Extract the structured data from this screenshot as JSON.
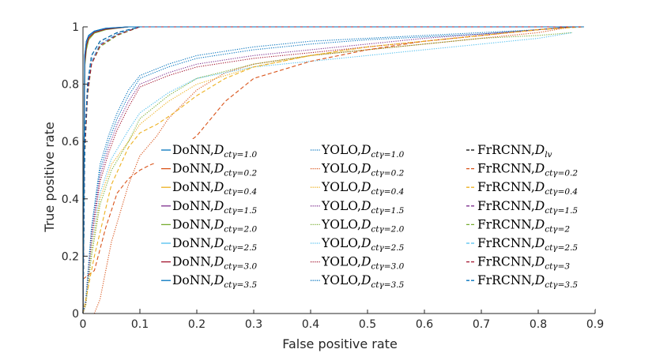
{
  "chart_data": {
    "type": "line",
    "title": "",
    "xlabel": "False positive rate",
    "ylabel": "True positive rate",
    "xlim": [
      0,
      0.9
    ],
    "ylim": [
      0,
      1
    ],
    "xticks": [
      0,
      0.1,
      0.2,
      0.3,
      0.4,
      0.5,
      0.6,
      0.7,
      0.8,
      0.9
    ],
    "xtick_labels": [
      "0",
      "0.1",
      "0.2",
      "0.3",
      "0.4",
      "0.5",
      "0.6",
      "0.7",
      "0.8",
      "0.9"
    ],
    "yticks": [
      0,
      0.2,
      0.4,
      0.6,
      0.8,
      1
    ],
    "ytick_labels": [
      "0",
      "0.2",
      "0.4",
      "0.6",
      "0.8",
      "1"
    ],
    "grid": false,
    "legend_position": "inside-center-bottom, 3 columns",
    "series": [
      {
        "name": "DoNN, D_ctγ=1.0",
        "model": "DoNN",
        "sub": "ctγ=1.0",
        "color": "#0072BD",
        "style": "solid",
        "x": [
          0,
          0.003,
          0.006,
          0.01,
          0.02,
          0.04,
          0.08,
          0.88
        ],
        "y": [
          0,
          0.9,
          0.95,
          0.97,
          0.985,
          0.995,
          1,
          1
        ]
      },
      {
        "name": "DoNN, D_ctγ=0.2",
        "model": "DoNN",
        "sub": "ctγ=0.2",
        "color": "#D95319",
        "style": "solid",
        "x": [
          0,
          0.003,
          0.006,
          0.01,
          0.02,
          0.04,
          0.08,
          0.88
        ],
        "y": [
          0,
          0.88,
          0.94,
          0.965,
          0.982,
          0.993,
          1,
          1
        ]
      },
      {
        "name": "DoNN, D_ctγ=0.4",
        "model": "DoNN",
        "sub": "ctγ=0.4",
        "color": "#EDB120",
        "style": "solid",
        "x": [
          0,
          0.003,
          0.006,
          0.01,
          0.02,
          0.04,
          0.08,
          0.88
        ],
        "y": [
          0,
          0.87,
          0.93,
          0.96,
          0.98,
          0.992,
          1,
          1
        ]
      },
      {
        "name": "DoNN, D_ctγ=1.5",
        "model": "DoNN",
        "sub": "ctγ=1.5",
        "color": "#7E2F8E",
        "style": "solid",
        "x": [
          0,
          0.003,
          0.006,
          0.01,
          0.02,
          0.04,
          0.08,
          0.88
        ],
        "y": [
          0,
          0.89,
          0.945,
          0.968,
          0.984,
          0.994,
          1,
          1
        ]
      },
      {
        "name": "DoNN, D_ctγ=2.0",
        "model": "DoNN",
        "sub": "ctγ=2.0",
        "color": "#77AC30",
        "style": "solid",
        "x": [
          0,
          0.003,
          0.006,
          0.01,
          0.02,
          0.04,
          0.08,
          0.88
        ],
        "y": [
          0,
          0.86,
          0.92,
          0.955,
          0.978,
          0.99,
          1,
          1
        ]
      },
      {
        "name": "DoNN, D_ctγ=2.5",
        "model": "DoNN",
        "sub": "ctγ=2.5",
        "color": "#4DBEEE",
        "style": "solid",
        "x": [
          0,
          0.003,
          0.006,
          0.01,
          0.02,
          0.04,
          0.08,
          0.88
        ],
        "y": [
          0,
          0.88,
          0.94,
          0.966,
          0.983,
          0.993,
          1,
          1
        ]
      },
      {
        "name": "DoNN, D_ctγ=3.0",
        "model": "DoNN",
        "sub": "ctγ=3.0",
        "color": "#A2142F",
        "style": "solid",
        "x": [
          0,
          0.003,
          0.006,
          0.01,
          0.02,
          0.04,
          0.08,
          0.88
        ],
        "y": [
          0,
          0.87,
          0.935,
          0.962,
          0.981,
          0.992,
          1,
          1
        ]
      },
      {
        "name": "DoNN, D_ctγ=3.5",
        "model": "DoNN",
        "sub": "ctγ=3.5",
        "color": "#0072BD",
        "style": "solid",
        "x": [
          0,
          0.003,
          0.006,
          0.01,
          0.02,
          0.04,
          0.08,
          0.88
        ],
        "y": [
          0,
          0.9,
          0.95,
          0.97,
          0.985,
          0.995,
          1,
          1
        ]
      },
      {
        "name": "YOLO, D_ctγ=1.0",
        "model": "YOLO",
        "sub": "ctγ=1.0",
        "color": "#0072BD",
        "style": "dotted",
        "x": [
          0,
          0.005,
          0.015,
          0.03,
          0.045,
          0.06,
          0.08,
          0.1,
          0.15,
          0.2,
          0.3,
          0.4,
          0.5,
          0.6,
          0.7,
          0.8,
          0.86
        ],
        "y": [
          0,
          0.05,
          0.3,
          0.5,
          0.6,
          0.68,
          0.76,
          0.82,
          0.86,
          0.89,
          0.92,
          0.94,
          0.955,
          0.965,
          0.975,
          0.99,
          1
        ]
      },
      {
        "name": "YOLO, D_ctγ=0.2",
        "model": "YOLO",
        "sub": "ctγ=0.2",
        "color": "#D95319",
        "style": "dotted",
        "x": [
          0.02,
          0.03,
          0.05,
          0.08,
          0.1,
          0.13,
          0.15,
          0.2,
          0.25,
          0.3,
          0.4,
          0.5,
          0.6,
          0.7,
          0.8,
          0.86
        ],
        "y": [
          0,
          0.05,
          0.25,
          0.45,
          0.55,
          0.62,
          0.68,
          0.78,
          0.84,
          0.87,
          0.9,
          0.92,
          0.94,
          0.96,
          0.98,
          1
        ]
      },
      {
        "name": "YOLO, D_ctγ=0.4",
        "model": "YOLO",
        "sub": "ctγ=0.4",
        "color": "#EDB120",
        "style": "dotted",
        "x": [
          0,
          0.005,
          0.015,
          0.03,
          0.05,
          0.08,
          0.1,
          0.15,
          0.2,
          0.3,
          0.4,
          0.5,
          0.6,
          0.7,
          0.8,
          0.86
        ],
        "y": [
          0,
          0.03,
          0.22,
          0.4,
          0.52,
          0.6,
          0.66,
          0.74,
          0.8,
          0.86,
          0.9,
          0.93,
          0.95,
          0.97,
          0.99,
          1
        ]
      },
      {
        "name": "YOLO, D_ctγ=1.5",
        "model": "YOLO",
        "sub": "ctγ=1.5",
        "color": "#7E2F8E",
        "style": "dotted",
        "x": [
          0,
          0.005,
          0.015,
          0.03,
          0.045,
          0.06,
          0.08,
          0.1,
          0.15,
          0.2,
          0.3,
          0.4,
          0.5,
          0.6,
          0.7,
          0.8,
          0.86
        ],
        "y": [
          0,
          0.04,
          0.28,
          0.48,
          0.58,
          0.66,
          0.74,
          0.8,
          0.84,
          0.87,
          0.9,
          0.92,
          0.94,
          0.96,
          0.975,
          0.99,
          1
        ]
      },
      {
        "name": "YOLO, D_ctγ=2.0",
        "model": "YOLO",
        "sub": "ctγ=2.0",
        "color": "#77AC30",
        "style": "dotted",
        "x": [
          0,
          0.005,
          0.015,
          0.03,
          0.05,
          0.08,
          0.1,
          0.15,
          0.2,
          0.3,
          0.4,
          0.5,
          0.6,
          0.7,
          0.8,
          0.86
        ],
        "y": [
          0,
          0.03,
          0.2,
          0.38,
          0.5,
          0.6,
          0.68,
          0.76,
          0.82,
          0.87,
          0.9,
          0.92,
          0.94,
          0.96,
          0.97,
          0.98
        ]
      },
      {
        "name": "YOLO, D_ctγ=2.5",
        "model": "YOLO",
        "sub": "ctγ=2.5",
        "color": "#4DBEEE",
        "style": "dotted",
        "x": [
          0,
          0.005,
          0.015,
          0.03,
          0.05,
          0.08,
          0.1,
          0.15,
          0.2,
          0.3,
          0.4,
          0.5,
          0.6,
          0.7,
          0.8,
          0.86
        ],
        "y": [
          0,
          0.04,
          0.24,
          0.42,
          0.54,
          0.64,
          0.7,
          0.77,
          0.82,
          0.86,
          0.88,
          0.9,
          0.92,
          0.94,
          0.96,
          0.98
        ]
      },
      {
        "name": "YOLO, D_ctγ=3.0",
        "model": "YOLO",
        "sub": "ctγ=3.0",
        "color": "#A2142F",
        "style": "dotted",
        "x": [
          0,
          0.005,
          0.015,
          0.03,
          0.045,
          0.06,
          0.08,
          0.1,
          0.15,
          0.2,
          0.3,
          0.4,
          0.5,
          0.6,
          0.7,
          0.8,
          0.86
        ],
        "y": [
          0,
          0.04,
          0.26,
          0.46,
          0.56,
          0.64,
          0.72,
          0.79,
          0.83,
          0.86,
          0.89,
          0.91,
          0.93,
          0.95,
          0.97,
          0.99,
          1
        ]
      },
      {
        "name": "YOLO, D_ctγ=3.5",
        "model": "YOLO",
        "sub": "ctγ=3.5",
        "color": "#0072BD",
        "style": "dotted",
        "x": [
          0,
          0.005,
          0.015,
          0.03,
          0.045,
          0.06,
          0.08,
          0.1,
          0.15,
          0.2,
          0.3,
          0.4,
          0.5,
          0.6,
          0.7,
          0.8,
          0.86
        ],
        "y": [
          0,
          0.05,
          0.3,
          0.52,
          0.62,
          0.7,
          0.78,
          0.83,
          0.87,
          0.9,
          0.93,
          0.95,
          0.96,
          0.97,
          0.98,
          0.99,
          1
        ]
      },
      {
        "name": "FrRCNN, D_lv",
        "model": "FrRCNN",
        "sub": "lv",
        "color": "#000000",
        "style": "dashed",
        "x": [
          0,
          0.003,
          0.008,
          0.015,
          0.03,
          0.06,
          0.1,
          0.88
        ],
        "y": [
          0,
          0.6,
          0.8,
          0.9,
          0.95,
          0.98,
          1,
          1
        ]
      },
      {
        "name": "FrRCNN, D_ctγ=0.2",
        "model": "FrRCNN",
        "sub": "ctγ=0.2",
        "color": "#D95319",
        "style": "dashed",
        "x": [
          0,
          0.02,
          0.04,
          0.06,
          0.08,
          0.1,
          0.12,
          0.15,
          0.2,
          0.25,
          0.3,
          0.4,
          0.5,
          0.6,
          0.7,
          0.8,
          0.86
        ],
        "y": [
          0.12,
          0.15,
          0.3,
          0.42,
          0.47,
          0.5,
          0.52,
          0.54,
          0.62,
          0.74,
          0.82,
          0.88,
          0.92,
          0.95,
          0.97,
          0.99,
          1
        ]
      },
      {
        "name": "FrRCNN, D_ctγ=0.4",
        "model": "FrRCNN",
        "sub": "ctγ=0.4",
        "color": "#EDB120",
        "style": "dashed",
        "x": [
          0,
          0.02,
          0.05,
          0.08,
          0.1,
          0.13,
          0.16,
          0.2,
          0.25,
          0.3,
          0.4,
          0.5,
          0.6,
          0.7,
          0.8,
          0.88
        ],
        "y": [
          0,
          0.2,
          0.45,
          0.58,
          0.63,
          0.66,
          0.7,
          0.76,
          0.82,
          0.86,
          0.9,
          0.93,
          0.95,
          0.97,
          0.99,
          1
        ]
      },
      {
        "name": "FrRCNN, D_ctγ=1.5",
        "model": "FrRCNN",
        "sub": "ctγ=1.5",
        "color": "#7E2F8E",
        "style": "dashed",
        "x": [
          0,
          0.003,
          0.008,
          0.015,
          0.03,
          0.06,
          0.1,
          0.88
        ],
        "y": [
          0,
          0.58,
          0.78,
          0.88,
          0.94,
          0.975,
          1,
          1
        ]
      },
      {
        "name": "FrRCNN, D_ctγ=2",
        "model": "FrRCNN",
        "sub": "ctγ=2",
        "color": "#77AC30",
        "style": "dashed",
        "x": [
          0,
          0.003,
          0.008,
          0.015,
          0.03,
          0.06,
          0.1,
          0.88
        ],
        "y": [
          0,
          0.55,
          0.76,
          0.87,
          0.93,
          0.97,
          1,
          1
        ]
      },
      {
        "name": "FrRCNN, D_ctγ=2.5",
        "model": "FrRCNN",
        "sub": "ctγ=2.5",
        "color": "#4DBEEE",
        "style": "dashed",
        "x": [
          0,
          0.003,
          0.008,
          0.015,
          0.03,
          0.06,
          0.1,
          0.88
        ],
        "y": [
          0,
          0.57,
          0.77,
          0.88,
          0.94,
          0.975,
          1,
          1
        ]
      },
      {
        "name": "FrRCNN, D_ctγ=3",
        "model": "FrRCNN",
        "sub": "ctγ=3",
        "color": "#A2142F",
        "style": "dashed",
        "x": [
          0,
          0.003,
          0.008,
          0.015,
          0.03,
          0.06,
          0.1,
          0.88
        ],
        "y": [
          0,
          0.56,
          0.77,
          0.87,
          0.935,
          0.972,
          1,
          1
        ]
      },
      {
        "name": "FrRCNN, D_ctγ=3.5",
        "model": "FrRCNN",
        "sub": "ctγ=3.5",
        "color": "#0072BD",
        "style": "dashed",
        "x": [
          0,
          0.003,
          0.008,
          0.015,
          0.03,
          0.06,
          0.1,
          0.88
        ],
        "y": [
          0,
          0.6,
          0.8,
          0.9,
          0.95,
          0.98,
          1,
          1
        ]
      }
    ]
  }
}
